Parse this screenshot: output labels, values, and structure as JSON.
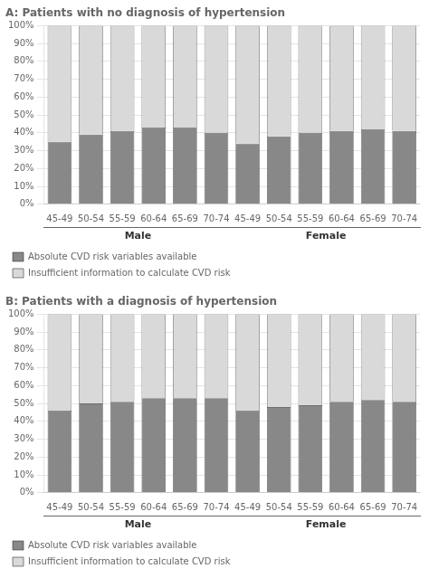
{
  "chart_data": [
    {
      "type": "bar",
      "title": "A: Patients with no diagnosis of hypertension",
      "categories": [
        "45-49",
        "50-54",
        "55-59",
        "60-64",
        "65-69",
        "70-74",
        "45-49",
        "50-54",
        "55-59",
        "60-64",
        "65-69",
        "70-74"
      ],
      "annotations": [
        "Male",
        "Female"
      ],
      "series": [
        {
          "name": "Absolute CVD risk variables available",
          "color": "#888888",
          "values": [
            35,
            39,
            41,
            43,
            43,
            40,
            34,
            38,
            40,
            41,
            42,
            41
          ]
        },
        {
          "name": "Insufficient information to calculate CVD risk",
          "color": "#d9d9d9",
          "values": [
            65,
            61,
            59,
            57,
            57,
            60,
            66,
            62,
            60,
            59,
            58,
            59
          ]
        }
      ],
      "stacked": true,
      "ylim": [
        0,
        100
      ],
      "yticks": [
        {
          "value": 0,
          "label": "0%"
        },
        {
          "value": 10,
          "label": "10%"
        },
        {
          "value": 20,
          "label": "20%"
        },
        {
          "value": 30,
          "label": "30%"
        },
        {
          "value": 40,
          "label": "40%"
        },
        {
          "value": 50,
          "label": "50%"
        },
        {
          "value": 60,
          "label": "60%"
        },
        {
          "value": 70,
          "label": "70%"
        },
        {
          "value": 80,
          "label": "80%"
        },
        {
          "value": 90,
          "label": "90%"
        },
        {
          "value": 100,
          "label": "100%"
        }
      ],
      "grid": true,
      "legend": "bottom"
    },
    {
      "type": "bar",
      "title": "B: Patients with a diagnosis of hypertension",
      "categories": [
        "45-49",
        "50-54",
        "55-59",
        "60-64",
        "65-69",
        "70-74",
        "45-49",
        "50-54",
        "55-59",
        "60-64",
        "65-69",
        "70-74"
      ],
      "annotations": [
        "Male",
        "Female"
      ],
      "series": [
        {
          "name": "Absolute CVD risk variables available",
          "color": "#888888",
          "values": [
            46,
            50,
            51,
            53,
            53,
            53,
            46,
            48,
            49,
            51,
            52,
            51
          ]
        },
        {
          "name": "Insufficient information to calculate CVD risk",
          "color": "#d9d9d9",
          "values": [
            54,
            50,
            49,
            47,
            47,
            47,
            54,
            52,
            51,
            49,
            48,
            49
          ]
        }
      ],
      "stacked": true,
      "ylim": [
        0,
        100
      ],
      "yticks": [
        {
          "value": 0,
          "label": "0%"
        },
        {
          "value": 10,
          "label": "10%"
        },
        {
          "value": 20,
          "label": "20%"
        },
        {
          "value": 30,
          "label": "30%"
        },
        {
          "value": 40,
          "label": "40%"
        },
        {
          "value": 50,
          "label": "50%"
        },
        {
          "value": 60,
          "label": "60%"
        },
        {
          "value": 70,
          "label": "70%"
        },
        {
          "value": 80,
          "label": "80%"
        },
        {
          "value": 90,
          "label": "90%"
        },
        {
          "value": 100,
          "label": "100%"
        }
      ],
      "grid": true,
      "legend": "bottom"
    }
  ]
}
